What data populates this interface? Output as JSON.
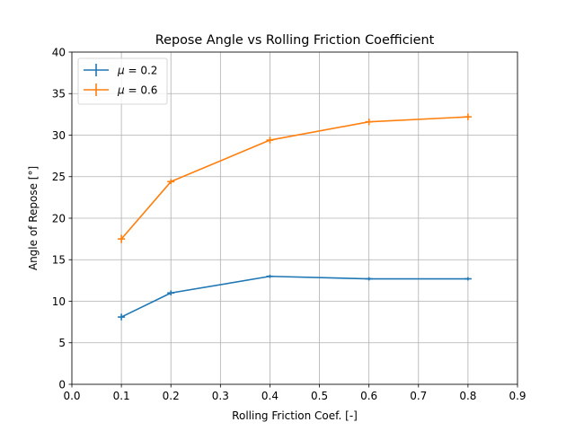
{
  "chart_data": {
    "type": "line",
    "title": "Repose Angle vs Rolling Friction Coefficient",
    "xlabel": "Rolling Friction Coef. [-]",
    "ylabel": "Angle of Repose [°]",
    "xlim": [
      0,
      0.9
    ],
    "ylim": [
      0,
      40
    ],
    "xticks": [
      "0.0",
      "0.1",
      "0.2",
      "0.3",
      "0.4",
      "0.5",
      "0.6",
      "0.7",
      "0.8",
      "0.9"
    ],
    "yticks": [
      "0",
      "5",
      "10",
      "15",
      "20",
      "25",
      "30",
      "35",
      "40"
    ],
    "grid": true,
    "legend_position": "upper-left",
    "series": [
      {
        "name": "μ = 0.2",
        "name_symbol": "μ",
        "name_value": " = 0.2",
        "color": "#1f77b4",
        "x": [
          0.1,
          0.2,
          0.4,
          0.6,
          0.8
        ],
        "y": [
          8.1,
          11.0,
          13.0,
          12.7,
          12.7
        ],
        "yerr": [
          0.4,
          0.3,
          0.2,
          0.2,
          0.2
        ]
      },
      {
        "name": "μ = 0.6",
        "name_symbol": "μ",
        "name_value": " = 0.6",
        "color": "#ff7f0e",
        "x": [
          0.1,
          0.2,
          0.4,
          0.6,
          0.8
        ],
        "y": [
          17.5,
          24.4,
          29.4,
          31.6,
          32.2
        ],
        "yerr": [
          0.5,
          0.3,
          0.4,
          0.4,
          0.4
        ]
      }
    ]
  }
}
